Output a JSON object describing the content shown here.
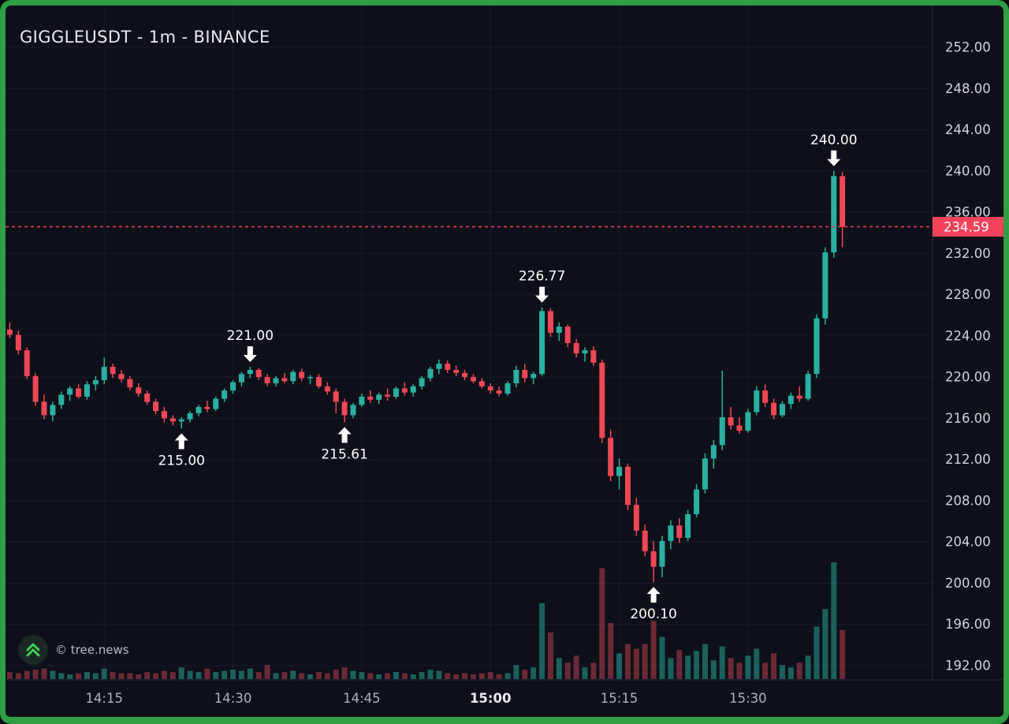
{
  "app": {
    "title": "GIGGLEUSDT - 1m - BINANCE",
    "watermark": "© tree.news"
  },
  "colors": {
    "background": "#0d1018",
    "frame_green": "#2f9e44",
    "candle_up": "#2ab0a0",
    "candle_down": "#ef4757",
    "volume_up": "rgba(42,176,160,0.5)",
    "volume_down": "rgba(220,70,88,0.45)",
    "grid": "#161c29",
    "axis_line": "#262b38",
    "axis_text": "#cfd3dd",
    "time_text": "#aeb2bd",
    "time_text_bold": "#e9ebf3",
    "price_line": "#f4425a",
    "price_label_bg": "#f4425a",
    "price_label_text": "#ffffff",
    "annotation": "#ffffff",
    "logo_chevron": "#3ecf52"
  },
  "chart_data": {
    "type": "candlestick",
    "symbol": "GIGGLEUSDT",
    "interval": "1m",
    "exchange": "BINANCE",
    "title": "GIGGLEUSDT - 1m - BINANCE",
    "last_price": 234.59,
    "last_price_label": "234.59",
    "y_axis": {
      "min": 192,
      "max": 252,
      "tick_step": 4,
      "labels": [
        "252.00",
        "248.00",
        "244.00",
        "240.00",
        "236.00",
        "232.00",
        "228.00",
        "224.00",
        "220.00",
        "216.00",
        "212.00",
        "208.00",
        "204.00",
        "200.00",
        "196.00",
        "192.00"
      ]
    },
    "x_axis": {
      "slots": 108,
      "ticks": [
        {
          "label": "14:15",
          "slot": 11,
          "bold": false
        },
        {
          "label": "14:30",
          "slot": 26,
          "bold": false
        },
        {
          "label": "14:45",
          "slot": 41,
          "bold": false
        },
        {
          "label": "15:00",
          "slot": 56,
          "bold": true
        },
        {
          "label": "15:15",
          "slot": 71,
          "bold": false
        },
        {
          "label": "15:30",
          "slot": 86,
          "bold": false
        }
      ]
    },
    "volume_max_units": 100,
    "candles": [
      [
        "14:04",
        224.6,
        225.3,
        223.8,
        224.1,
        6
      ],
      [
        "14:05",
        224.1,
        224.5,
        222.2,
        222.6,
        5
      ],
      [
        "14:06",
        222.6,
        222.9,
        219.8,
        220.1,
        7
      ],
      [
        "14:07",
        220.1,
        220.4,
        217.2,
        217.6,
        8
      ],
      [
        "14:08",
        217.6,
        218.3,
        215.9,
        216.3,
        9
      ],
      [
        "14:09",
        216.3,
        217.6,
        215.7,
        217.3,
        7
      ],
      [
        "14:10",
        217.3,
        218.6,
        216.9,
        218.3,
        5
      ],
      [
        "14:11",
        218.3,
        219.1,
        217.7,
        218.9,
        4
      ],
      [
        "14:12",
        218.9,
        219.3,
        217.9,
        218.1,
        5
      ],
      [
        "14:13",
        218.1,
        219.6,
        217.8,
        219.3,
        6
      ],
      [
        "14:14",
        219.3,
        220.1,
        218.7,
        219.7,
        5
      ],
      [
        "14:15",
        219.7,
        221.9,
        219.3,
        221.0,
        9
      ],
      [
        "14:16",
        221.0,
        221.3,
        219.9,
        220.3,
        6
      ],
      [
        "14:17",
        220.3,
        220.7,
        219.5,
        219.8,
        5
      ],
      [
        "14:18",
        219.8,
        220.1,
        218.7,
        219.0,
        5
      ],
      [
        "14:19",
        219.0,
        219.4,
        218.1,
        218.4,
        4
      ],
      [
        "14:20",
        218.4,
        218.7,
        217.3,
        217.6,
        6
      ],
      [
        "14:21",
        217.6,
        217.9,
        216.4,
        216.7,
        5
      ],
      [
        "14:22",
        216.7,
        217.1,
        215.6,
        216.0,
        7
      ],
      [
        "14:23",
        216.0,
        216.3,
        215.3,
        215.7,
        6
      ],
      [
        "14:24",
        215.7,
        216.1,
        215.0,
        215.9,
        10
      ],
      [
        "14:25",
        215.9,
        216.7,
        215.6,
        216.5,
        7
      ],
      [
        "14:26",
        216.5,
        217.3,
        216.2,
        217.1,
        6
      ],
      [
        "14:27",
        217.1,
        217.7,
        216.6,
        216.9,
        9
      ],
      [
        "14:28",
        216.9,
        218.1,
        216.7,
        217.9,
        6
      ],
      [
        "14:29",
        217.9,
        218.9,
        217.6,
        218.7,
        7
      ],
      [
        "14:30",
        218.7,
        219.7,
        218.4,
        219.5,
        8
      ],
      [
        "14:31",
        219.5,
        220.5,
        219.1,
        220.3,
        7
      ],
      [
        "14:32",
        220.3,
        221.0,
        219.9,
        220.7,
        9
      ],
      [
        "14:33",
        220.7,
        220.9,
        219.7,
        220.0,
        6
      ],
      [
        "14:34",
        220.0,
        220.3,
        219.1,
        219.4,
        12
      ],
      [
        "14:35",
        219.4,
        220.1,
        219.1,
        219.9,
        5
      ],
      [
        "14:36",
        219.9,
        220.4,
        219.4,
        219.6,
        6
      ],
      [
        "14:37",
        219.6,
        220.7,
        219.3,
        220.5,
        7
      ],
      [
        "14:38",
        220.5,
        220.8,
        219.6,
        219.9,
        5
      ],
      [
        "14:39",
        219.9,
        220.2,
        219.3,
        220.0,
        4
      ],
      [
        "14:40",
        220.0,
        220.3,
        218.9,
        219.1,
        6
      ],
      [
        "14:41",
        219.1,
        219.5,
        218.3,
        218.6,
        5
      ],
      [
        "14:42",
        218.6,
        218.9,
        216.5,
        217.6,
        8
      ],
      [
        "14:43",
        217.6,
        217.9,
        215.61,
        216.3,
        10
      ],
      [
        "14:44",
        216.3,
        217.5,
        216.0,
        217.3,
        7
      ],
      [
        "14:45",
        217.3,
        218.4,
        217.1,
        218.1,
        6
      ],
      [
        "14:46",
        218.1,
        218.7,
        217.5,
        217.8,
        5
      ],
      [
        "14:47",
        217.8,
        218.5,
        217.4,
        218.3,
        4
      ],
      [
        "14:48",
        218.3,
        218.9,
        217.7,
        218.1,
        5
      ],
      [
        "14:49",
        218.1,
        219.1,
        217.9,
        218.9,
        6
      ],
      [
        "14:50",
        218.9,
        219.5,
        218.2,
        218.5,
        5
      ],
      [
        "14:51",
        218.5,
        219.3,
        218.1,
        219.1,
        4
      ],
      [
        "14:52",
        219.1,
        220.1,
        218.8,
        219.9,
        6
      ],
      [
        "14:53",
        219.9,
        221.0,
        219.6,
        220.8,
        8
      ],
      [
        "14:54",
        220.8,
        221.7,
        220.3,
        221.3,
        7
      ],
      [
        "14:55",
        221.3,
        221.6,
        220.4,
        220.7,
        5
      ],
      [
        "14:56",
        220.7,
        221.1,
        220.1,
        220.4,
        4
      ],
      [
        "14:57",
        220.4,
        220.7,
        219.7,
        220.0,
        5
      ],
      [
        "14:58",
        220.0,
        220.3,
        219.4,
        219.6,
        4
      ],
      [
        "14:59",
        219.6,
        219.9,
        218.9,
        219.1,
        5
      ],
      [
        "15:00",
        219.1,
        219.4,
        218.4,
        218.7,
        6
      ],
      [
        "15:01",
        218.7,
        219.1,
        218.1,
        218.4,
        4
      ],
      [
        "15:02",
        218.4,
        219.6,
        218.2,
        219.4,
        5
      ],
      [
        "15:03",
        219.4,
        221.1,
        219.0,
        220.7,
        12
      ],
      [
        "15:04",
        220.7,
        221.3,
        219.5,
        219.9,
        8
      ],
      [
        "15:05",
        219.9,
        220.5,
        219.3,
        220.3,
        10
      ],
      [
        "15:06",
        220.3,
        226.77,
        220.1,
        226.4,
        65
      ],
      [
        "15:07",
        226.4,
        226.7,
        223.9,
        224.3,
        40
      ],
      [
        "15:08",
        224.3,
        225.3,
        223.5,
        224.9,
        18
      ],
      [
        "15:09",
        224.9,
        225.1,
        222.9,
        223.3,
        14
      ],
      [
        "15:10",
        223.3,
        223.7,
        221.9,
        222.3,
        20
      ],
      [
        "15:11",
        222.3,
        222.9,
        221.5,
        222.6,
        10
      ],
      [
        "15:12",
        222.6,
        223.0,
        221.1,
        221.4,
        14
      ],
      [
        "15:13",
        221.4,
        221.7,
        213.6,
        214.1,
        95
      ],
      [
        "15:14",
        214.1,
        214.9,
        209.9,
        210.4,
        48
      ],
      [
        "15:15",
        210.4,
        212.1,
        209.1,
        211.3,
        22
      ],
      [
        "15:16",
        211.3,
        211.6,
        207.1,
        207.6,
        30
      ],
      [
        "15:17",
        207.6,
        208.3,
        204.6,
        205.1,
        26
      ],
      [
        "15:18",
        205.1,
        205.7,
        202.6,
        203.1,
        30
      ],
      [
        "15:19",
        203.1,
        204.1,
        200.1,
        201.6,
        50
      ],
      [
        "15:20",
        201.6,
        204.6,
        200.6,
        204.1,
        36
      ],
      [
        "15:21",
        204.1,
        206.1,
        203.3,
        205.6,
        18
      ],
      [
        "15:22",
        205.6,
        206.3,
        203.9,
        204.4,
        25
      ],
      [
        "15:23",
        204.4,
        207.1,
        204.1,
        206.7,
        20
      ],
      [
        "15:24",
        206.7,
        209.6,
        206.4,
        209.1,
        24
      ],
      [
        "15:25",
        209.1,
        212.6,
        208.7,
        212.1,
        30
      ],
      [
        "15:26",
        212.1,
        213.9,
        211.1,
        213.4,
        16
      ],
      [
        "15:27",
        213.4,
        220.6,
        212.9,
        216.1,
        28
      ],
      [
        "15:28",
        216.1,
        217.1,
        214.9,
        215.3,
        18
      ],
      [
        "15:29",
        215.3,
        216.1,
        214.5,
        214.8,
        14
      ],
      [
        "15:30",
        214.8,
        216.9,
        214.6,
        216.6,
        20
      ],
      [
        "15:31",
        216.6,
        219.1,
        216.3,
        218.7,
        26
      ],
      [
        "15:32",
        218.7,
        219.3,
        217.1,
        217.5,
        14
      ],
      [
        "15:33",
        217.5,
        217.9,
        215.9,
        216.3,
        22
      ],
      [
        "15:34",
        216.3,
        217.7,
        216.1,
        217.4,
        12
      ],
      [
        "15:35",
        217.4,
        218.5,
        216.9,
        218.2,
        10
      ],
      [
        "15:36",
        218.2,
        219.1,
        217.6,
        217.9,
        14
      ],
      [
        "15:37",
        217.9,
        220.6,
        217.7,
        220.3,
        20
      ],
      [
        "15:38",
        220.3,
        226.1,
        219.9,
        225.7,
        45
      ],
      [
        "15:39",
        225.7,
        232.6,
        225.1,
        232.1,
        60
      ],
      [
        "15:40",
        232.1,
        240.0,
        231.6,
        239.5,
        100
      ],
      [
        "15:41",
        239.5,
        239.9,
        232.6,
        234.59,
        42
      ]
    ],
    "annotations": [
      {
        "slot": 20,
        "price": 215.0,
        "label": "215.00",
        "direction": "up"
      },
      {
        "slot": 28,
        "price": 221.0,
        "label": "221.00",
        "direction": "down"
      },
      {
        "slot": 39,
        "price": 215.61,
        "label": "215.61",
        "direction": "up"
      },
      {
        "slot": 62,
        "price": 226.77,
        "label": "226.77",
        "direction": "down"
      },
      {
        "slot": 75,
        "price": 200.1,
        "label": "200.10",
        "direction": "up"
      },
      {
        "slot": 96,
        "price": 240.0,
        "label": "240.00",
        "direction": "down"
      }
    ]
  }
}
